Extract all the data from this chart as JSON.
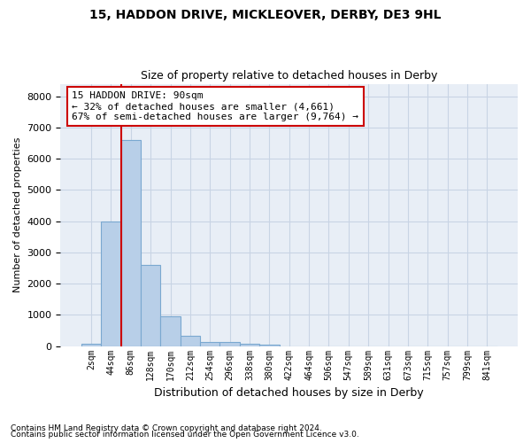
{
  "title1": "15, HADDON DRIVE, MICKLEOVER, DERBY, DE3 9HL",
  "title2": "Size of property relative to detached houses in Derby",
  "xlabel": "Distribution of detached houses by size in Derby",
  "ylabel": "Number of detached properties",
  "footnote1": "Contains HM Land Registry data © Crown copyright and database right 2024.",
  "footnote2": "Contains public sector information licensed under the Open Government Licence v3.0.",
  "annotation_title": "15 HADDON DRIVE: 90sqm",
  "annotation_line1": "← 32% of detached houses are smaller (4,661)",
  "annotation_line2": "67% of semi-detached houses are larger (9,764) →",
  "bar_color": "#b8cfe8",
  "bar_edge_color": "#7aa8d0",
  "vline_color": "#cc0000",
  "annotation_edge_color": "#cc0000",
  "grid_color": "#c8d4e4",
  "background_color": "#e8eef6",
  "categories": [
    "2sqm",
    "44sqm",
    "86sqm",
    "128sqm",
    "170sqm",
    "212sqm",
    "254sqm",
    "296sqm",
    "338sqm",
    "380sqm",
    "422sqm",
    "464sqm",
    "506sqm",
    "547sqm",
    "589sqm",
    "631sqm",
    "673sqm",
    "715sqm",
    "757sqm",
    "799sqm",
    "841sqm"
  ],
  "values": [
    75,
    4000,
    6600,
    2600,
    960,
    330,
    140,
    130,
    80,
    60,
    0,
    0,
    0,
    0,
    0,
    0,
    0,
    0,
    0,
    0,
    0
  ],
  "ylim": [
    0,
    8400
  ],
  "yticks": [
    0,
    1000,
    2000,
    3000,
    4000,
    5000,
    6000,
    7000,
    8000
  ],
  "vline_bar_index": 2,
  "figsize": [
    6.0,
    5.0
  ],
  "dpi": 100
}
